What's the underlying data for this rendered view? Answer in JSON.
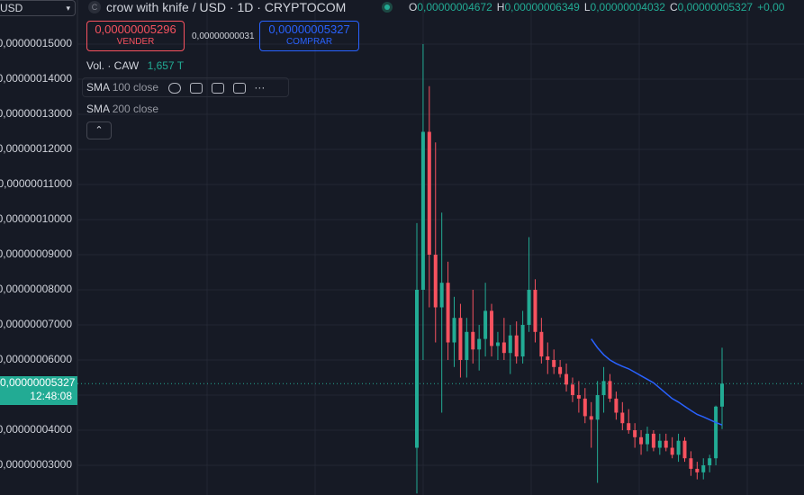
{
  "chart_data": {
    "type": "candlestick",
    "symbol_menu": "USD",
    "title": "crow with knife / USD · 1D · CRYPTOCOM",
    "ohlc_legend": [
      {
        "key": "O",
        "value": 4.672e-08,
        "label": "0,00000004672"
      },
      {
        "key": "H",
        "value": 6.349e-08,
        "label": "0,00000006349"
      },
      {
        "key": "L",
        "value": 4.032e-08,
        "label": "0,00000004032"
      },
      {
        "key": "C",
        "value": 5.327e-08,
        "label": "0,00000005327"
      }
    ],
    "change_label": "+0,00",
    "sell": {
      "price": "0,00000005296",
      "label": "VENDER"
    },
    "spread": "0,00000000031",
    "buy": {
      "price": "0,00000005327",
      "label": "COMPRAR"
    },
    "volume": {
      "label": "Vol. · CAW",
      "value": "1,657 T"
    },
    "indicators": [
      {
        "name": "SMA",
        "params": "100 close",
        "color": "#2962ff"
      },
      {
        "name": "SMA",
        "params": "200 close"
      }
    ],
    "last_price": {
      "value": 5.327e-08,
      "label": "0,00000005327",
      "time": "12:48:08"
    },
    "up_color": "#22ab94",
    "down_color": "#f7525f",
    "ylim": [
      2.154e-08,
      1.6256e-07
    ],
    "yticks": [
      {
        "value": 3e-08,
        "label": "0,00000003000"
      },
      {
        "value": 4e-08,
        "label": "0,00000004000"
      },
      {
        "value": 5e-08,
        "label": "0,00000005000"
      },
      {
        "value": 6e-08,
        "label": "0,00000006000"
      },
      {
        "value": 7e-08,
        "label": "0,00000007000"
      },
      {
        "value": 8e-08,
        "label": "0,00000008000"
      },
      {
        "value": 9e-08,
        "label": "0,00000009000"
      },
      {
        "value": 1e-07,
        "label": "0,00000010000"
      },
      {
        "value": 1.1e-07,
        "label": "0,00000011000"
      },
      {
        "value": 1.2e-07,
        "label": "0,00000012000"
      },
      {
        "value": 1.3e-07,
        "label": "0,00000013000"
      },
      {
        "value": 1.4e-07,
        "label": "0,00000014000"
      },
      {
        "value": 1.5e-07,
        "label": "0,00000015000"
      }
    ],
    "grid": true,
    "open": [
      3.5e-08,
      8e-08,
      1.25e-07,
      9e-08,
      7.5e-08,
      8.2e-08,
      6.5e-08,
      7.2e-08,
      6e-08,
      6.8e-08,
      6.3e-08,
      6.6e-08,
      7.4e-08,
      6.4e-08,
      6.5e-08,
      6.2e-08,
      6.7e-08,
      6.1e-08,
      7e-08,
      8e-08,
      6.8e-08,
      6.1e-08,
      6e-08,
      5.8e-08,
      5.6e-08,
      5.3e-08,
      5e-08,
      4.9e-08,
      4.4e-08,
      4.3e-08,
      5e-08,
      5.4e-08,
      4.9e-08,
      4.5e-08,
      4.2e-08,
      4e-08,
      3.8e-08,
      3.6e-08,
      3.9e-08,
      3.5e-08,
      3.7e-08,
      3.5e-08,
      3.3e-08,
      3.7e-08,
      3.2e-08,
      2.9e-08,
      2.8e-08,
      3e-08,
      3.2e-08,
      4.672e-08
    ],
    "high": [
      9.9e-08,
      1.5e-07,
      1.38e-07,
      1.22e-07,
      1.02e-07,
      8.8e-08,
      7.8e-08,
      7.6e-08,
      7.2e-08,
      8e-08,
      7e-08,
      8.2e-08,
      7.6e-08,
      6.8e-08,
      7.2e-08,
      7e-08,
      7.1e-08,
      7.4e-08,
      9.5e-08,
      8.3e-08,
      7.2e-08,
      6.5e-08,
      6.3e-08,
      6e-08,
      5.9e-08,
      5.5e-08,
      5.4e-08,
      5.2e-08,
      4.8e-08,
      5.4e-08,
      5.8e-08,
      5.6e-08,
      5.1e-08,
      4.8e-08,
      4.6e-08,
      4.2e-08,
      4e-08,
      4.1e-08,
      4e-08,
      3.9e-08,
      3.9e-08,
      3.8e-08,
      3.9e-08,
      3.8e-08,
      3.4e-08,
      3.1e-08,
      3.2e-08,
      3.3e-08,
      4.7e-08,
      6.349e-08
    ],
    "low": [
      2.2e-08,
      6e-08,
      7.5e-08,
      6.5e-08,
      4.5e-08,
      6e-08,
      5.8e-08,
      5.5e-08,
      5.5e-08,
      5.9e-08,
      5.7e-08,
      6.1e-08,
      6.1e-08,
      6e-08,
      6e-08,
      5.6e-08,
      5.9e-08,
      5.9e-08,
      6.8e-08,
      6.5e-08,
      5.9e-08,
      5.6e-08,
      5.6e-08,
      5.5e-08,
      5.1e-08,
      4.8e-08,
      4.5e-08,
      4.2e-08,
      3.5e-08,
      2.5e-08,
      4.5e-08,
      4.8e-08,
      4.3e-08,
      4e-08,
      3.9e-08,
      3.5e-08,
      3.3e-08,
      3.4e-08,
      3.4e-08,
      3.3e-08,
      3.4e-08,
      3.2e-08,
      3.1e-08,
      3.1e-08,
      2.7e-08,
      2.6e-08,
      2.6e-08,
      2.8e-08,
      3e-08,
      4.032e-08
    ],
    "close": [
      8e-08,
      1.25e-07,
      9e-08,
      7.5e-08,
      8.2e-08,
      6.5e-08,
      7.2e-08,
      6e-08,
      6.8e-08,
      6.3e-08,
      6.6e-08,
      7.4e-08,
      6.4e-08,
      6.5e-08,
      6.2e-08,
      6.7e-08,
      6.1e-08,
      7e-08,
      8e-08,
      6.8e-08,
      6.1e-08,
      6e-08,
      5.8e-08,
      5.6e-08,
      5.3e-08,
      5e-08,
      4.9e-08,
      4.4e-08,
      4.3e-08,
      5e-08,
      5.4e-08,
      4.9e-08,
      4.5e-08,
      4.2e-08,
      4e-08,
      3.8e-08,
      3.6e-08,
      3.9e-08,
      3.5e-08,
      3.7e-08,
      3.5e-08,
      3.3e-08,
      3.7e-08,
      3.2e-08,
      2.9e-08,
      2.8e-08,
      3e-08,
      3.2e-08,
      4.672e-08,
      5.327e-08
    ],
    "sma100": [
      null,
      null,
      null,
      null,
      null,
      null,
      null,
      null,
      null,
      null,
      null,
      null,
      null,
      null,
      null,
      null,
      null,
      null,
      null,
      null,
      null,
      null,
      null,
      null,
      null,
      null,
      null,
      null,
      6.6e-08,
      6.35e-08,
      6.15e-08,
      6e-08,
      5.9e-08,
      5.82e-08,
      5.75e-08,
      5.65e-08,
      5.55e-08,
      5.45e-08,
      5.35e-08,
      5.2e-08,
      5.05e-08,
      4.9e-08,
      4.8e-08,
      4.68e-08,
      4.56e-08,
      4.45e-08,
      4.38e-08,
      4.3e-08,
      4.22e-08,
      4.15e-08
    ]
  }
}
